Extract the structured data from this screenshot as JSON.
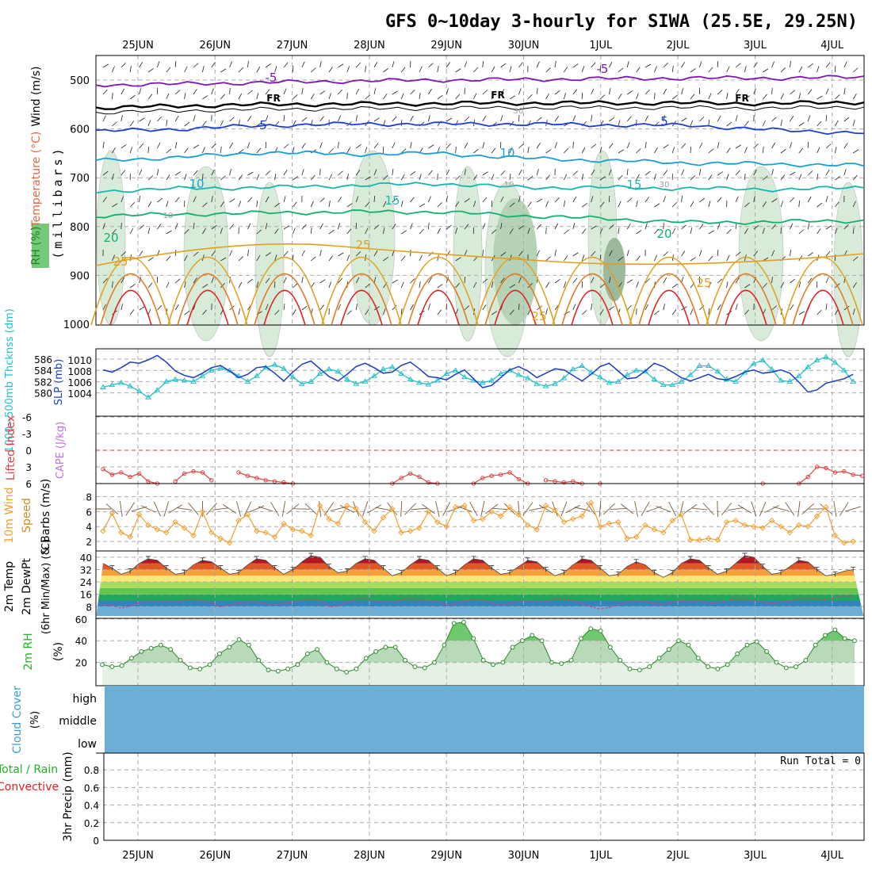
{
  "title": "GFS 0~10day 3-hourly for SIWA (25.5E, 29.25N)",
  "colors": {
    "purple": "#7b18b6",
    "black": "#000000",
    "blue": "#1b3fd6",
    "lightblue": "#17a0d8",
    "teal": "#16b6b0",
    "green": "#10b070",
    "orange": "#e0a020",
    "darkorange": "#e07a20",
    "red": "#e02020",
    "cyan": "#25c0c8",
    "slp": "#1b3cc8",
    "wind10": "#f0a030",
    "rh": "#22b322",
    "cloud": "#6baed6",
    "rhshade": "#cfe8cf"
  },
  "chart_data": [
    {
      "panel": "vertical-cross-section",
      "type": "line",
      "title": "GFS 0~10day 3-hourly for SIWA (25.5E, 29.25N)",
      "x": [
        "25JUN",
        "26JUN",
        "27JUN",
        "28JUN",
        "29JUN",
        "30JUN",
        "1JUL",
        "2JUL",
        "3JUL",
        "4JUL"
      ],
      "ylabel": "(millibars)",
      "ylabel_left": [
        "Wind (m/s)",
        "Temperature (°C)",
        "RH (%)"
      ],
      "ylim": [
        1000,
        450
      ],
      "yticks": [
        500,
        600,
        700,
        800,
        900,
        1000
      ],
      "isotherm_labels": [
        "-5",
        "FR",
        "5",
        "10",
        "15",
        "20",
        "25"
      ],
      "rh_contour_labels": [
        "10",
        "30"
      ],
      "series": [
        {
          "name": "-5",
          "values": [
            510,
            508,
            505,
            502,
            500,
            499,
            497,
            496,
            496,
            494
          ]
        },
        {
          "name": "FR",
          "values": [
            557,
            553,
            550,
            549,
            548,
            547,
            547,
            547,
            548,
            545
          ]
        },
        {
          "name": "5",
          "values": [
            605,
            600,
            593,
            590,
            590,
            590,
            592,
            593,
            603,
            608
          ]
        },
        {
          "name": "10",
          "values": [
            665,
            658,
            648,
            652,
            650,
            660,
            665,
            670,
            672,
            675
          ]
        },
        {
          "name": "15",
          "values": [
            728,
            722,
            720,
            716,
            712,
            720,
            720,
            722,
            724,
            720
          ]
        },
        {
          "name": "20",
          "values": [
            778,
            775,
            772,
            770,
            770,
            778,
            784,
            792,
            790,
            788
          ]
        }
      ]
    },
    {
      "panel": "thickness-slp",
      "type": "line",
      "ylabel": [
        "1000~500mb Thcknss (dm)",
        "SLP (mb)"
      ],
      "yticks_left": [
        "586",
        "584",
        "582",
        "580"
      ],
      "yticks_right": [
        "1010",
        "1008",
        "1006",
        "1004"
      ],
      "series": [
        {
          "name": "1000~500mb Thcknss (dm)",
          "values": [
            581.0,
            581.4,
            581.8,
            581.2,
            580.3,
            579.2,
            580.5,
            582.0,
            582.4,
            582.2,
            582.0,
            583.0,
            584.0,
            584.4,
            584.0,
            583.0,
            582.0,
            583.0,
            584.5,
            585.0,
            584.3,
            582.8,
            581.6,
            582.0,
            583.4,
            584.2,
            583.8,
            582.4,
            581.6,
            582.0,
            583.0,
            584.2,
            584.6,
            583.4,
            582.4,
            581.8,
            581.5,
            582.2,
            583.4,
            584.0,
            582.8,
            582.2,
            581.8,
            582.2,
            583.4,
            584.0,
            583.2,
            582.6,
            581.6,
            581.2,
            581.6,
            582.6,
            584.2,
            584.8,
            583.6,
            582.8,
            581.8,
            582.0,
            583.2,
            584.0,
            583.8,
            582.4,
            581.4,
            581.4,
            582.0,
            583.2,
            584.8,
            584.8,
            583.8,
            582.4,
            582.0,
            583.6,
            585.2,
            585.8,
            584.2,
            582.2,
            582.0,
            583.0,
            584.6,
            585.8,
            586.4,
            585.4,
            584.0,
            582.0
          ]
        },
        {
          "name": "SLP (mb)",
          "values": [
            1008.2,
            1007.8,
            1008.6,
            1009.6,
            1009.4,
            1010.0,
            1010.8,
            1009.6,
            1008.0,
            1007.2,
            1006.8,
            1007.6,
            1008.6,
            1009.0,
            1008.0,
            1006.8,
            1007.4,
            1008.6,
            1008.8,
            1007.6,
            1006.2,
            1007.8,
            1009.2,
            1009.8,
            1008.4,
            1007.0,
            1006.2,
            1007.4,
            1008.8,
            1009.4,
            1008.6,
            1007.6,
            1007.8,
            1009.0,
            1009.6,
            1008.4,
            1007.0,
            1006.8,
            1006.4,
            1007.4,
            1008.2,
            1006.6,
            1005.0,
            1005.4,
            1006.8,
            1008.2,
            1008.8,
            1008.0,
            1006.8,
            1007.6,
            1008.4,
            1008.2,
            1007.2,
            1006.2,
            1007.4,
            1008.8,
            1009.4,
            1008.0,
            1006.6,
            1006.8,
            1008.0,
            1009.4,
            1008.8,
            1007.8,
            1006.8,
            1006.2,
            1006.8,
            1007.4,
            1006.6,
            1006.4,
            1007.0,
            1007.8,
            1008.2,
            1007.6,
            1007.8,
            1008.2,
            1007.6,
            1006.0,
            1004.2,
            1004.6,
            1005.8,
            1006.2,
            1006.6,
            1007.4
          ]
        }
      ]
    },
    {
      "panel": "lifted-index-cape",
      "type": "line",
      "ylabel": [
        "Lifted Index",
        "CAPE (J/kg)"
      ],
      "yticks": [
        "-6",
        "-3",
        "0",
        "3",
        "6"
      ],
      "ylim": [
        6,
        -6
      ],
      "series": [
        {
          "name": "Lifted Index",
          "segments": [
            {
              "start": 0,
              "values": [
                3.4,
                4.4,
                4.0,
                4.8,
                4.2,
                5.6,
                6.0
              ]
            },
            {
              "start": 8,
              "values": [
                5.6,
                4.2,
                3.8,
                4.0,
                5.4
              ]
            },
            {
              "start": 15,
              "values": [
                4.0,
                4.6,
                5.0,
                5.4,
                5.6,
                5.8,
                6.0
              ]
            },
            {
              "start": 32,
              "values": [
                6.0,
                5.0,
                4.2,
                4.8,
                5.8,
                6.0
              ]
            },
            {
              "start": 41,
              "values": [
                6.0,
                5.0,
                4.6,
                4.4,
                4.0,
                5.2,
                6.0
              ]
            },
            {
              "start": 49,
              "values": [
                5.4,
                5.6,
                5.8,
                5.6,
                6.0
              ]
            },
            {
              "start": 55,
              "values": [
                6.0
              ]
            },
            {
              "start": 73,
              "values": [
                6.0
              ]
            },
            {
              "start": 77,
              "values": [
                6.0,
                4.8,
                3.0,
                3.2,
                4.0,
                3.8,
                4.4,
                4.6
              ]
            },
            {
              "start": 76,
              "values": []
            }
          ]
        }
      ]
    },
    {
      "panel": "10m-wind",
      "type": "line",
      "ylabel": [
        "10m Wind",
        "Speed",
        "& Barbs (m/s)"
      ],
      "yticks": [
        "8",
        "6",
        "4",
        "2"
      ],
      "ylim": [
        1,
        9
      ],
      "series": [
        {
          "name": "10m Wind Speed",
          "values": [
            3.4,
            5.8,
            3.2,
            2.6,
            5.6,
            4.2,
            3.6,
            3.2,
            4.6,
            3.8,
            2.8,
            6.0,
            3.2,
            2.4,
            1.8,
            4.8,
            5.6,
            3.4,
            3.2,
            2.6,
            4.4,
            3.6,
            3.4,
            2.8,
            6.8,
            5.0,
            4.4,
            6.8,
            6.4,
            4.6,
            3.4,
            5.2,
            6.4,
            3.2,
            3.4,
            3.8,
            6.0,
            4.6,
            4.0,
            6.6,
            6.8,
            4.8,
            5.0,
            6.0,
            5.4,
            6.6,
            5.6,
            4.2,
            3.6,
            6.8,
            6.2,
            4.6,
            5.0,
            5.4,
            7.2,
            4.0,
            4.4,
            4.6,
            2.4,
            2.6,
            4.2,
            3.6,
            3.2,
            4.8,
            5.6,
            2.2,
            2.2,
            2.4,
            2.2,
            4.6,
            4.8,
            4.2,
            4.0,
            3.8,
            4.8,
            4.0,
            3.2,
            4.2,
            4.0,
            5.4,
            6.6,
            2.8,
            1.8,
            2.0
          ]
        }
      ]
    },
    {
      "panel": "2m-temperature",
      "type": "area",
      "ylabel": [
        "2m Temp",
        "2m DewPt",
        "(6hr Min/Max) (°C)"
      ],
      "yticks": [
        "40",
        "32",
        "24",
        "16",
        "8"
      ],
      "ylim": [
        2,
        44
      ],
      "series": [
        {
          "name": "2m Temp",
          "values": [
            36,
            33,
            29,
            31,
            36,
            39,
            38,
            33,
            29,
            30,
            35,
            38,
            37,
            33,
            29,
            30,
            35,
            39,
            38,
            33,
            29,
            32,
            37,
            41,
            40,
            34,
            30,
            31,
            36,
            39,
            38,
            33,
            28,
            30,
            35,
            39,
            38,
            33,
            28,
            30,
            35,
            39,
            38,
            33,
            29,
            30,
            34,
            38,
            37,
            32,
            28,
            30,
            35,
            39,
            38,
            33,
            28,
            29,
            34,
            37,
            35,
            30,
            27,
            30,
            36,
            39,
            38,
            33,
            29,
            31,
            36,
            41,
            40,
            34,
            29,
            30,
            34,
            38,
            37,
            32,
            28,
            29,
            31,
            32
          ]
        },
        {
          "name": "2m DewPt",
          "values": [
            9.5,
            9.0,
            7.0,
            8.5,
            10.5,
            11.5,
            11.0,
            11.5,
            11.0,
            12.5,
            13.0,
            12.0,
            10.5,
            8.0,
            9.0,
            10.5,
            11.0,
            11.0,
            10.0,
            9.5,
            10.0,
            11.0,
            12.5,
            13.0,
            12.0,
            8.0,
            8.5,
            11.0,
            13.0,
            13.5,
            12.0,
            11.0,
            11.0,
            12.5,
            13.5,
            12.5,
            12.0,
            11.5,
            9.0,
            10.0,
            12.0,
            12.5,
            12.0,
            10.5,
            9.5,
            10.0,
            11.5,
            12.0,
            11.0,
            11.5,
            13.0,
            13.0,
            12.0,
            10.0,
            8.0,
            6.5,
            7.5,
            9.5,
            11.0,
            12.0,
            11.5,
            10.0,
            9.5,
            11.0,
            12.0,
            12.0,
            12.0,
            10.5,
            10.5,
            12.0,
            13.0,
            13.0,
            12.0,
            11.0,
            10.0,
            11.0,
            12.0,
            13.0,
            13.5,
            13.0,
            12.5,
            14.0,
            15.0,
            14.5
          ]
        }
      ]
    },
    {
      "panel": "2m-rh",
      "type": "area",
      "ylabel": [
        "2m RH",
        "(%)"
      ],
      "yticks": [
        "60",
        "40",
        "20"
      ],
      "ylim": [
        0,
        60
      ],
      "series": [
        {
          "name": "2m RH",
          "values": [
            18,
            16,
            17,
            24,
            30,
            33,
            36,
            32,
            22,
            15,
            14,
            18,
            28,
            34,
            41,
            36,
            22,
            13,
            12,
            14,
            18,
            28,
            32,
            20,
            14,
            11,
            14,
            24,
            30,
            34,
            34,
            22,
            16,
            15,
            20,
            36,
            56,
            57,
            42,
            22,
            18,
            20,
            34,
            40,
            45,
            40,
            20,
            19,
            22,
            42,
            51,
            49,
            34,
            22,
            14,
            13,
            16,
            24,
            32,
            40,
            36,
            24,
            16,
            14,
            18,
            28,
            36,
            39,
            30,
            20,
            15,
            16,
            22,
            36,
            45,
            50,
            42,
            40
          ]
        }
      ]
    },
    {
      "panel": "cloud-cover",
      "type": "area",
      "ylabel": [
        "Cloud Cover",
        "(%)"
      ],
      "levels": [
        "high",
        "middle",
        "low"
      ]
    },
    {
      "panel": "precipitation",
      "type": "bar",
      "ylabel": [
        "Total / Rain",
        "Convective",
        "3hr Precip (mm)"
      ],
      "yticks": [
        "0.8",
        "0.6",
        "0.4",
        "0.2",
        "0"
      ],
      "ylim": [
        0,
        1
      ],
      "run_total_label": "Run Total = 0",
      "values": []
    }
  ]
}
